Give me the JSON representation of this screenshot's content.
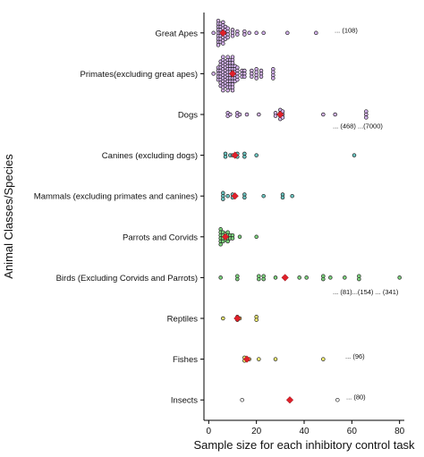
{
  "chart_data": {
    "type": "scatter",
    "title": "",
    "xlabel": "Sample size for each inhibitory control task",
    "ylabel": "Animal Classes/Species",
    "xlim": [
      -2,
      82
    ],
    "xticks": [
      0,
      20,
      40,
      60,
      80
    ],
    "grid": false,
    "legend": "none",
    "categories": [
      "Great Apes",
      "Primates(excluding great apes)",
      "Dogs",
      "Canines (excluding dogs)",
      "Mammals (excluding primates and canines)",
      "Parrots and Corvids",
      "Birds (Excluding Corvids and Parrots)",
      "Reptiles",
      "Fishes",
      "Insects"
    ],
    "colors": {
      "Great Apes": "#d7b5f0",
      "Primates(excluding great apes)": "#d7b5f0",
      "Dogs": "#d7b5f0",
      "Canines (excluding dogs)": "#6cc7c3",
      "Mammals (excluding primates and canines)": "#6cc7c3",
      "Parrots and Corvids": "#7fd67f",
      "Birds (Excluding Corvids and Parrots)": "#7fd67f",
      "Reptiles": "#f4ef72",
      "Fishes": "#f4ef72",
      "Insects": "#ffffff",
      "mean": "#e0202a",
      "outline": "#222222"
    },
    "series": [
      {
        "category": "Great Apes",
        "mean": 6,
        "points": [
          [
            2,
            1
          ],
          [
            4,
            9
          ],
          [
            5,
            7
          ],
          [
            6,
            8
          ],
          [
            7,
            5
          ],
          [
            8,
            4
          ],
          [
            10,
            3
          ],
          [
            12,
            2
          ],
          [
            15,
            2
          ],
          [
            17,
            1
          ],
          [
            20,
            1
          ],
          [
            23,
            1
          ],
          [
            33,
            1
          ],
          [
            45,
            1
          ]
        ]
      },
      {
        "category": "Primates(excluding great apes)",
        "mean": 10,
        "points": [
          [
            2,
            1
          ],
          [
            4,
            5
          ],
          [
            5,
            9
          ],
          [
            6,
            12
          ],
          [
            7,
            9
          ],
          [
            8,
            12
          ],
          [
            9,
            10
          ],
          [
            10,
            12
          ],
          [
            11,
            6
          ],
          [
            12,
            5
          ],
          [
            14,
            3
          ],
          [
            15,
            3
          ],
          [
            18,
            3
          ],
          [
            20,
            4
          ],
          [
            22,
            3
          ],
          [
            27,
            4
          ]
        ]
      },
      {
        "category": "Dogs",
        "mean": 30,
        "points": [
          [
            8,
            2
          ],
          [
            9,
            1
          ],
          [
            12,
            2
          ],
          [
            13,
            1
          ],
          [
            16,
            1
          ],
          [
            21,
            1
          ],
          [
            28,
            2
          ],
          [
            30,
            4
          ],
          [
            31,
            3
          ],
          [
            48,
            1
          ],
          [
            53,
            1
          ],
          [
            66,
            3
          ]
        ]
      },
      {
        "category": "Canines (excluding dogs)",
        "mean": 11,
        "points": [
          [
            7,
            2
          ],
          [
            9,
            1
          ],
          [
            10,
            1
          ],
          [
            12,
            2
          ],
          [
            15,
            2
          ],
          [
            20,
            1
          ],
          [
            61,
            1
          ]
        ]
      },
      {
        "category": "Mammals (excluding primates and canines)",
        "mean": 11,
        "points": [
          [
            6,
            3
          ],
          [
            8,
            1
          ],
          [
            10,
            2
          ],
          [
            15,
            2
          ],
          [
            23,
            1
          ],
          [
            31,
            2
          ],
          [
            35,
            1
          ]
        ]
      },
      {
        "category": "Parrots and Corvids",
        "mean": 7,
        "points": [
          [
            5,
            6
          ],
          [
            6,
            4
          ],
          [
            7,
            3
          ],
          [
            8,
            4
          ],
          [
            9,
            2
          ],
          [
            10,
            2
          ],
          [
            13,
            1
          ],
          [
            20,
            1
          ]
        ]
      },
      {
        "category": "Birds (Excluding Corvids and Parrots)",
        "mean": 32,
        "points": [
          [
            5,
            1
          ],
          [
            12,
            2
          ],
          [
            21,
            2
          ],
          [
            23,
            2
          ],
          [
            28,
            1
          ],
          [
            32,
            1
          ],
          [
            38,
            1
          ],
          [
            41,
            1
          ],
          [
            48,
            2
          ],
          [
            51,
            1
          ],
          [
            57,
            1
          ],
          [
            63,
            2
          ],
          [
            80,
            1
          ]
        ]
      },
      {
        "category": "Reptiles",
        "mean": 12,
        "points": [
          [
            6,
            1
          ],
          [
            12,
            2
          ],
          [
            13,
            1
          ],
          [
            20,
            2
          ]
        ]
      },
      {
        "category": "Fishes",
        "mean": 16,
        "points": [
          [
            15,
            2
          ],
          [
            16,
            1
          ],
          [
            17,
            1
          ],
          [
            21,
            1
          ],
          [
            28,
            1
          ],
          [
            48,
            1
          ]
        ]
      },
      {
        "category": "Insects",
        "mean": 34,
        "points": [
          [
            14,
            1
          ],
          [
            54,
            1
          ]
        ]
      }
    ],
    "annotations": [
      {
        "category": "Great Apes",
        "text": "... (108)"
      },
      {
        "category": "Dogs",
        "text": "... (468) ...(7000)"
      },
      {
        "category": "Birds (Excluding Corvids and Parrots)",
        "text": "... (81)...(154) ... (341)"
      },
      {
        "category": "Fishes",
        "text": "... (96)"
      },
      {
        "category": "Insects",
        "text": "... (80)"
      }
    ]
  }
}
